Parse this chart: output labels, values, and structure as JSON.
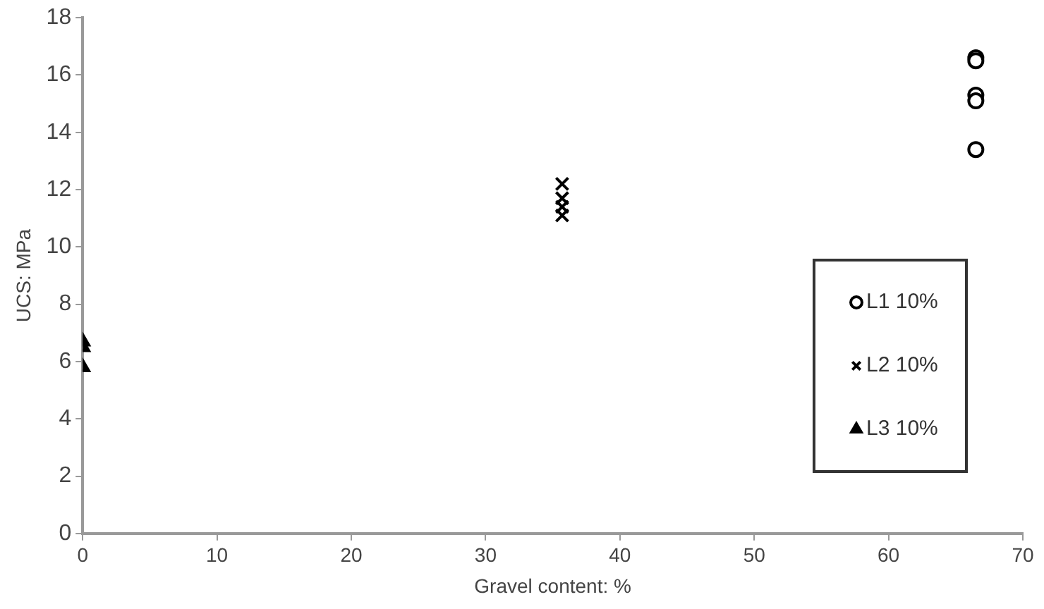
{
  "chart_data": {
    "type": "scatter",
    "xlabel": "Gravel content: %",
    "ylabel": "UCS: MPa",
    "xlim": [
      0,
      70
    ],
    "xticks": [
      0,
      10,
      20,
      30,
      40,
      50,
      60,
      70
    ],
    "ylim": [
      0,
      18
    ],
    "yticks": [
      0,
      2,
      4,
      6,
      8,
      10,
      12,
      14,
      16,
      18
    ],
    "grid": false,
    "legend": "right",
    "series": [
      {
        "name": "L1 10%",
        "color": "#000000",
        "marker": "circle",
        "x": [
          66.5,
          66.5,
          66.5,
          66.5,
          66.5
        ],
        "values": [
          16.6,
          16.5,
          15.3,
          15.1,
          13.4
        ]
      },
      {
        "name": "L2 10%",
        "color": "#000000",
        "marker": "cross",
        "x": [
          35.7,
          35.7,
          35.7,
          35.7
        ],
        "values": [
          12.2,
          11.7,
          11.4,
          11.1
        ]
      },
      {
        "name": "L3 10%",
        "color": "#000000",
        "marker": "triangle",
        "x": [
          0,
          0,
          0
        ],
        "values": [
          6.7,
          6.5,
          5.8
        ]
      }
    ]
  }
}
